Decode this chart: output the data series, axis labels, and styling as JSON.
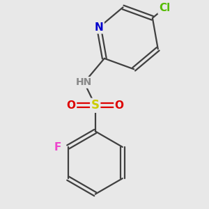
{
  "background_color": "#e8e8e8",
  "atom_colors": {
    "C": "#404040",
    "N_pyridine": "#0000cc",
    "N_amine": "#888888",
    "S": "#cccc00",
    "O": "#dd0000",
    "F": "#ee44cc",
    "Cl": "#55bb00",
    "H": "#888888"
  },
  "bond_color": "#404040",
  "bond_width": 1.6,
  "font_size": 10,
  "fig_size": [
    3.0,
    3.0
  ],
  "dpi": 100
}
